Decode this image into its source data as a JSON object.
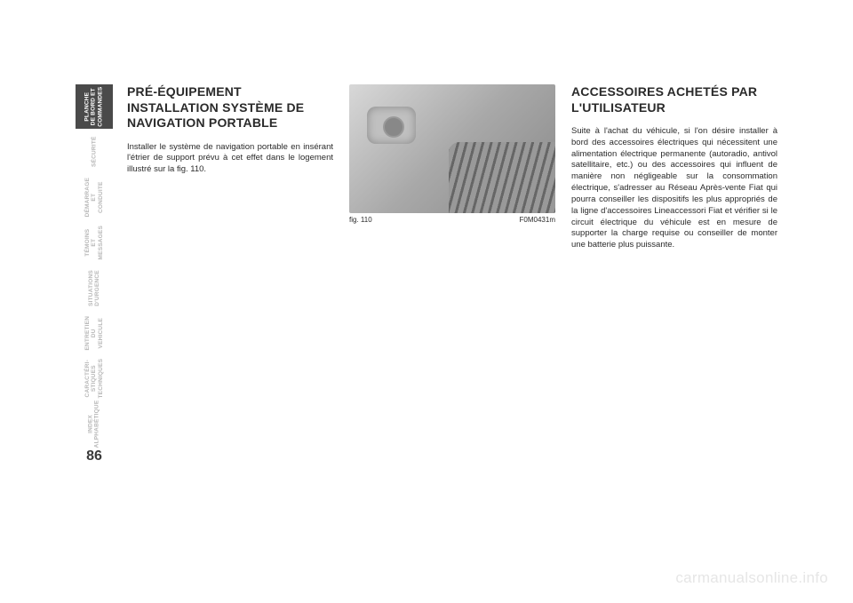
{
  "page_number": "86",
  "watermark": "carmanualsonline.info",
  "tabs": [
    {
      "label": "PLANCHE\nDE BORD ET\nCOMMANDES",
      "active": true
    },
    {
      "label": "SÉCURITÉ",
      "active": false
    },
    {
      "label": "DÉMARRAGE\nET CONDUITE",
      "active": false
    },
    {
      "label": "TÉMOINS\nET MESSAGES",
      "active": false
    },
    {
      "label": "SITUATIONS\nD'URGENCE",
      "active": false
    },
    {
      "label": "ENTRETIEN\nDU VEHICULE",
      "active": false
    },
    {
      "label": "CARACTÉRI-\nSTIQUES\nTECHNIQUES",
      "active": false
    },
    {
      "label": "INDEX\nALPHABÉTIQUE",
      "active": false
    }
  ],
  "col1": {
    "heading": "PRÉ-ÉQUIPEMENT INSTALLATION SYSTÈME DE NAVIGATION PORTABLE",
    "body": "Installer le système de navigation portable en insérant l'étrier de support prévu à cet effet dans le logement illustré sur la fig. 110."
  },
  "col2": {
    "fig_label": "fig. 110",
    "fig_code": "F0M0431m"
  },
  "col3": {
    "heading": "ACCESSOIRES ACHETÉS PAR L'UTILISATEUR",
    "body": "Suite à l'achat du véhicule, si l'on désire installer à bord des accessoires électriques qui nécessitent une alimentation électrique permanente (autoradio, antivol satellitaire, etc.) ou des accessoires qui influent de manière non négligeable sur la consommation électrique, s'adresser au Réseau Après-vente Fiat qui pourra conseiller les dispositifs les plus appropriés de la ligne d'accessoires Lineaccessori Fiat et vérifier si le circuit électrique du véhicule est en mesure de supporter la charge requise ou conseiller de monter une batterie plus puissante."
  }
}
